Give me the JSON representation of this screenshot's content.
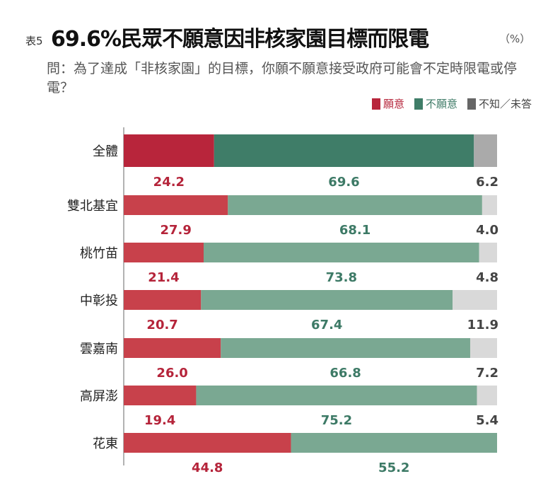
{
  "title": {
    "prefix": "表5",
    "main": "69.6%民眾不願意因非核家園目標而限電",
    "unit": "（%）"
  },
  "question": "問：為了達成「非核家園」的目標，你願不願意接受政府可能會不定時限電或停電？",
  "colors": {
    "willing": "#b8253b",
    "unwilling": "#3f7d68",
    "unknown": "#aaaaaa",
    "willing_light": "#c8414b",
    "unwilling_light": "#7aa892",
    "unknown_light": "#d9d9d9",
    "label_willing": "#b5243a",
    "label_unwilling": "#3d7a66",
    "label_unknown": "#444444"
  },
  "chart_data": {
    "type": "bar",
    "orientation": "horizontal-stacked-100",
    "categories": [
      "全體",
      "雙北基宜",
      "桃竹苗",
      "中彰投",
      "雲嘉南",
      "高屏澎",
      "花東"
    ],
    "series": [
      {
        "name": "願意",
        "values": [
          24.2,
          27.9,
          21.4,
          20.7,
          26.0,
          19.4,
          44.8
        ]
      },
      {
        "name": "不願意",
        "values": [
          69.6,
          68.1,
          73.8,
          67.4,
          66.8,
          75.2,
          55.2
        ]
      },
      {
        "name": "不知／未答",
        "values": [
          6.2,
          4.0,
          4.8,
          11.9,
          7.2,
          5.4,
          null
        ]
      }
    ],
    "xlim": [
      0,
      100
    ],
    "legend": "top-right",
    "grid": false
  }
}
